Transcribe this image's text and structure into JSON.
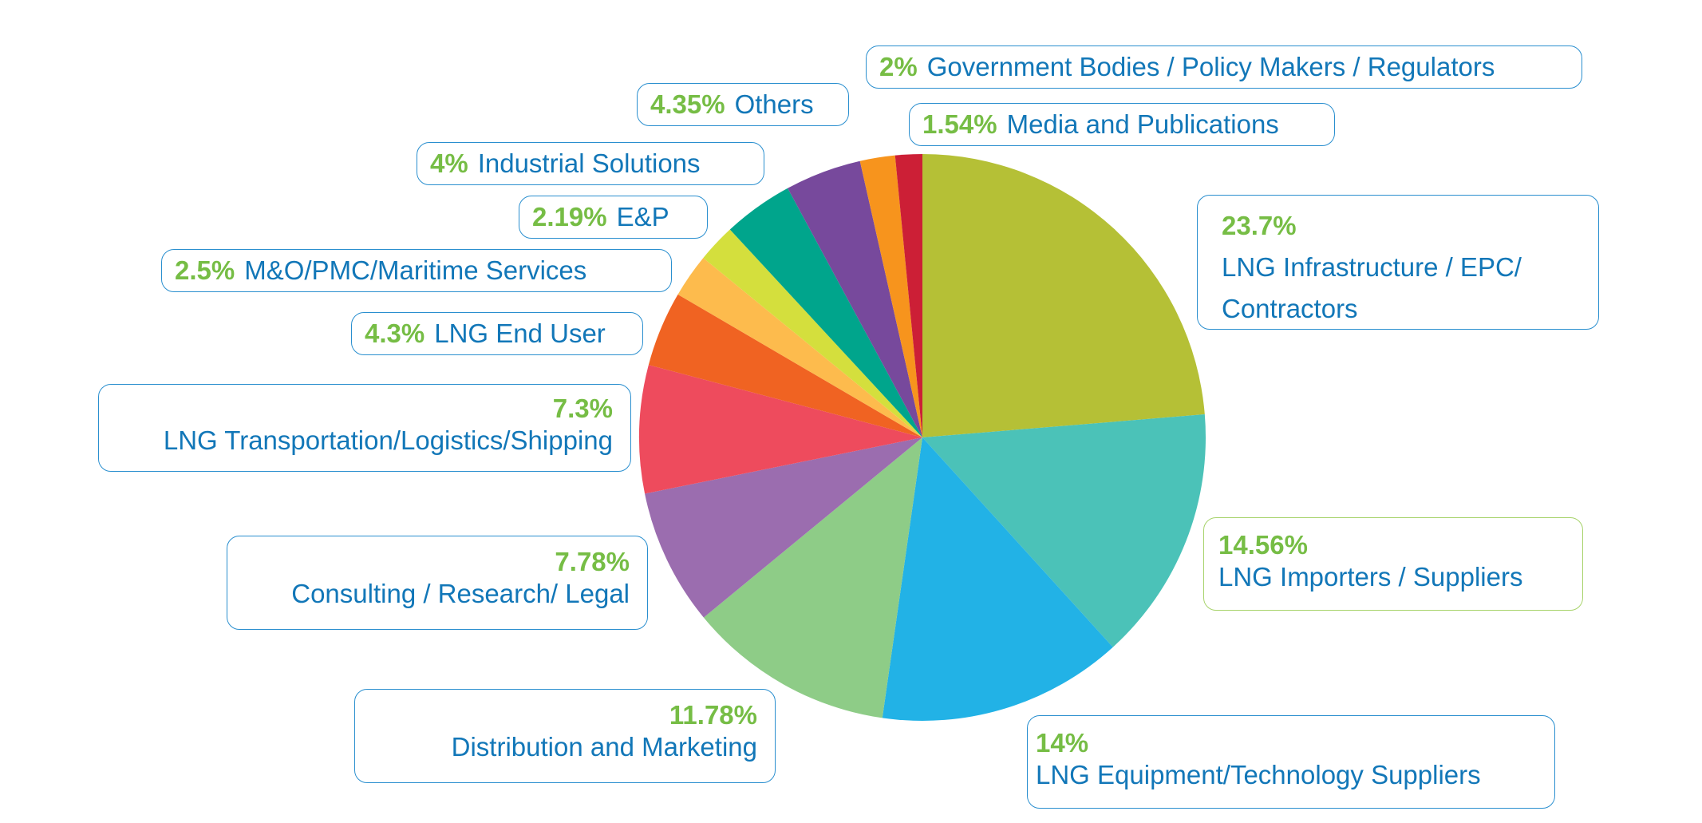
{
  "chart_data": {
    "type": "pie",
    "slices": [
      {
        "pct_label": "23.7%",
        "name": "LNG Infrastructure / EPC/ Contractors",
        "value": 23.7,
        "color": "#b5c036"
      },
      {
        "pct_label": "14.56%",
        "name": "LNG Importers / Suppliers",
        "value": 14.56,
        "color": "#4bc2b8"
      },
      {
        "pct_label": "14%",
        "name": "LNG Equipment/Technology Suppliers",
        "value": 14.0,
        "color": "#22b2e6"
      },
      {
        "pct_label": "11.78%",
        "name": "Distribution and Marketing",
        "value": 11.78,
        "color": "#8ecc87"
      },
      {
        "pct_label": "7.78%",
        "name": "Consulting / Research/ Legal",
        "value": 7.78,
        "color": "#9b6daf"
      },
      {
        "pct_label": "7.3%",
        "name": "LNG Transportation/Logistics/Shipping",
        "value": 7.3,
        "color": "#ee4b5d"
      },
      {
        "pct_label": "4.3%",
        "name": "LNG End User",
        "value": 4.3,
        "color": "#f06322"
      },
      {
        "pct_label": "2.5%",
        "name": "M&O/PMC/Maritime Services",
        "value": 2.5,
        "color": "#fdbb4d"
      },
      {
        "pct_label": "2.19%",
        "name": "E&P",
        "value": 2.19,
        "color": "#d4df3d"
      },
      {
        "pct_label": "4%",
        "name": "Industrial Solutions",
        "value": 4.0,
        "color": "#00a58c"
      },
      {
        "pct_label": "4.35%",
        "name": "Others",
        "value": 4.35,
        "color": "#77499c"
      },
      {
        "pct_label": "2%",
        "name": "Government Bodies / Policy Makers / Regulators",
        "value": 2.0,
        "color": "#f7941d"
      },
      {
        "pct_label": "1.54%",
        "name": "Media and Publications",
        "value": 1.54,
        "color": "#cc1f36"
      }
    ]
  }
}
